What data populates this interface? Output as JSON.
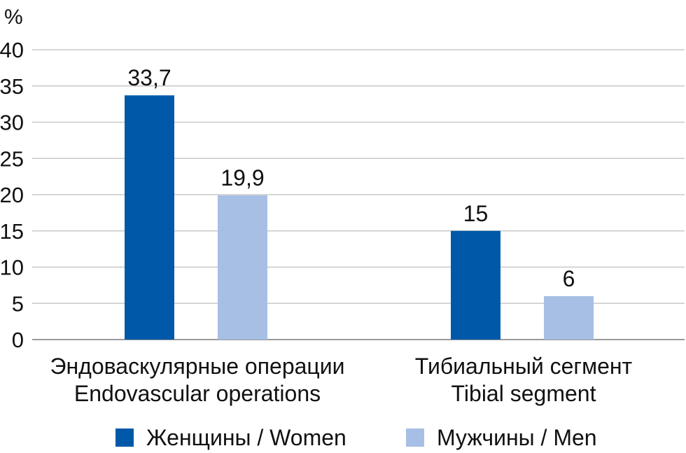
{
  "chart_data": {
    "type": "bar",
    "ylabel": "%",
    "ylim": [
      0,
      40
    ],
    "yticks": [
      0,
      5,
      10,
      15,
      20,
      25,
      30,
      35,
      40
    ],
    "grid": true,
    "legend_position": "bottom",
    "categories": [
      [
        "Эндоваскулярные операции",
        "Endovascular operations"
      ],
      [
        "Тибиальный сегмент",
        "Tibial segment"
      ]
    ],
    "series": [
      {
        "name": "Женщины / Women",
        "color": "#0059a8",
        "values": [
          33.7,
          15
        ],
        "labels": [
          "33,7",
          "15"
        ]
      },
      {
        "name": "Мужчины / Men",
        "color": "#a7bfe4",
        "values": [
          19.9,
          6
        ],
        "labels": [
          "19,9",
          "6"
        ]
      }
    ]
  }
}
